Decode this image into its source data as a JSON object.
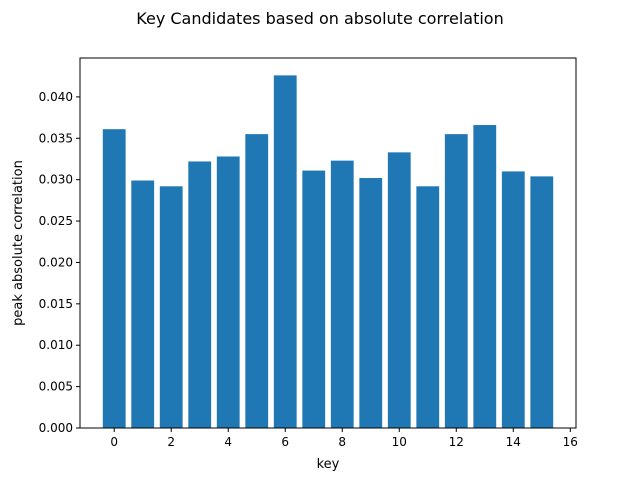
{
  "chart_data": {
    "type": "bar",
    "title": "Key Candidates based on absolute correlation",
    "xlabel": "key",
    "ylabel": "peak absolute correlation",
    "x": [
      0,
      1,
      2,
      3,
      4,
      5,
      6,
      7,
      8,
      9,
      10,
      11,
      12,
      13,
      14,
      15
    ],
    "values": [
      0.0361,
      0.0299,
      0.0292,
      0.0322,
      0.0328,
      0.0355,
      0.0426,
      0.0311,
      0.0323,
      0.0302,
      0.0333,
      0.0292,
      0.0355,
      0.0366,
      0.031,
      0.0304
    ],
    "xlim": [
      -1.2,
      16.2
    ],
    "ylim": [
      0,
      0.0447
    ],
    "xticks": [
      0,
      2,
      4,
      6,
      8,
      10,
      12,
      14,
      16
    ],
    "yticks": [
      0.0,
      0.005,
      0.01,
      0.015,
      0.02,
      0.025,
      0.03,
      0.035,
      0.04
    ],
    "ytick_labels": [
      "0.000",
      "0.005",
      "0.010",
      "0.015",
      "0.020",
      "0.025",
      "0.030",
      "0.035",
      "0.040"
    ],
    "xtick_labels": [
      "0",
      "2",
      "4",
      "6",
      "8",
      "10",
      "12",
      "14",
      "16"
    ],
    "bar_color": "#1f77b4",
    "grid": false,
    "legend": "none"
  }
}
